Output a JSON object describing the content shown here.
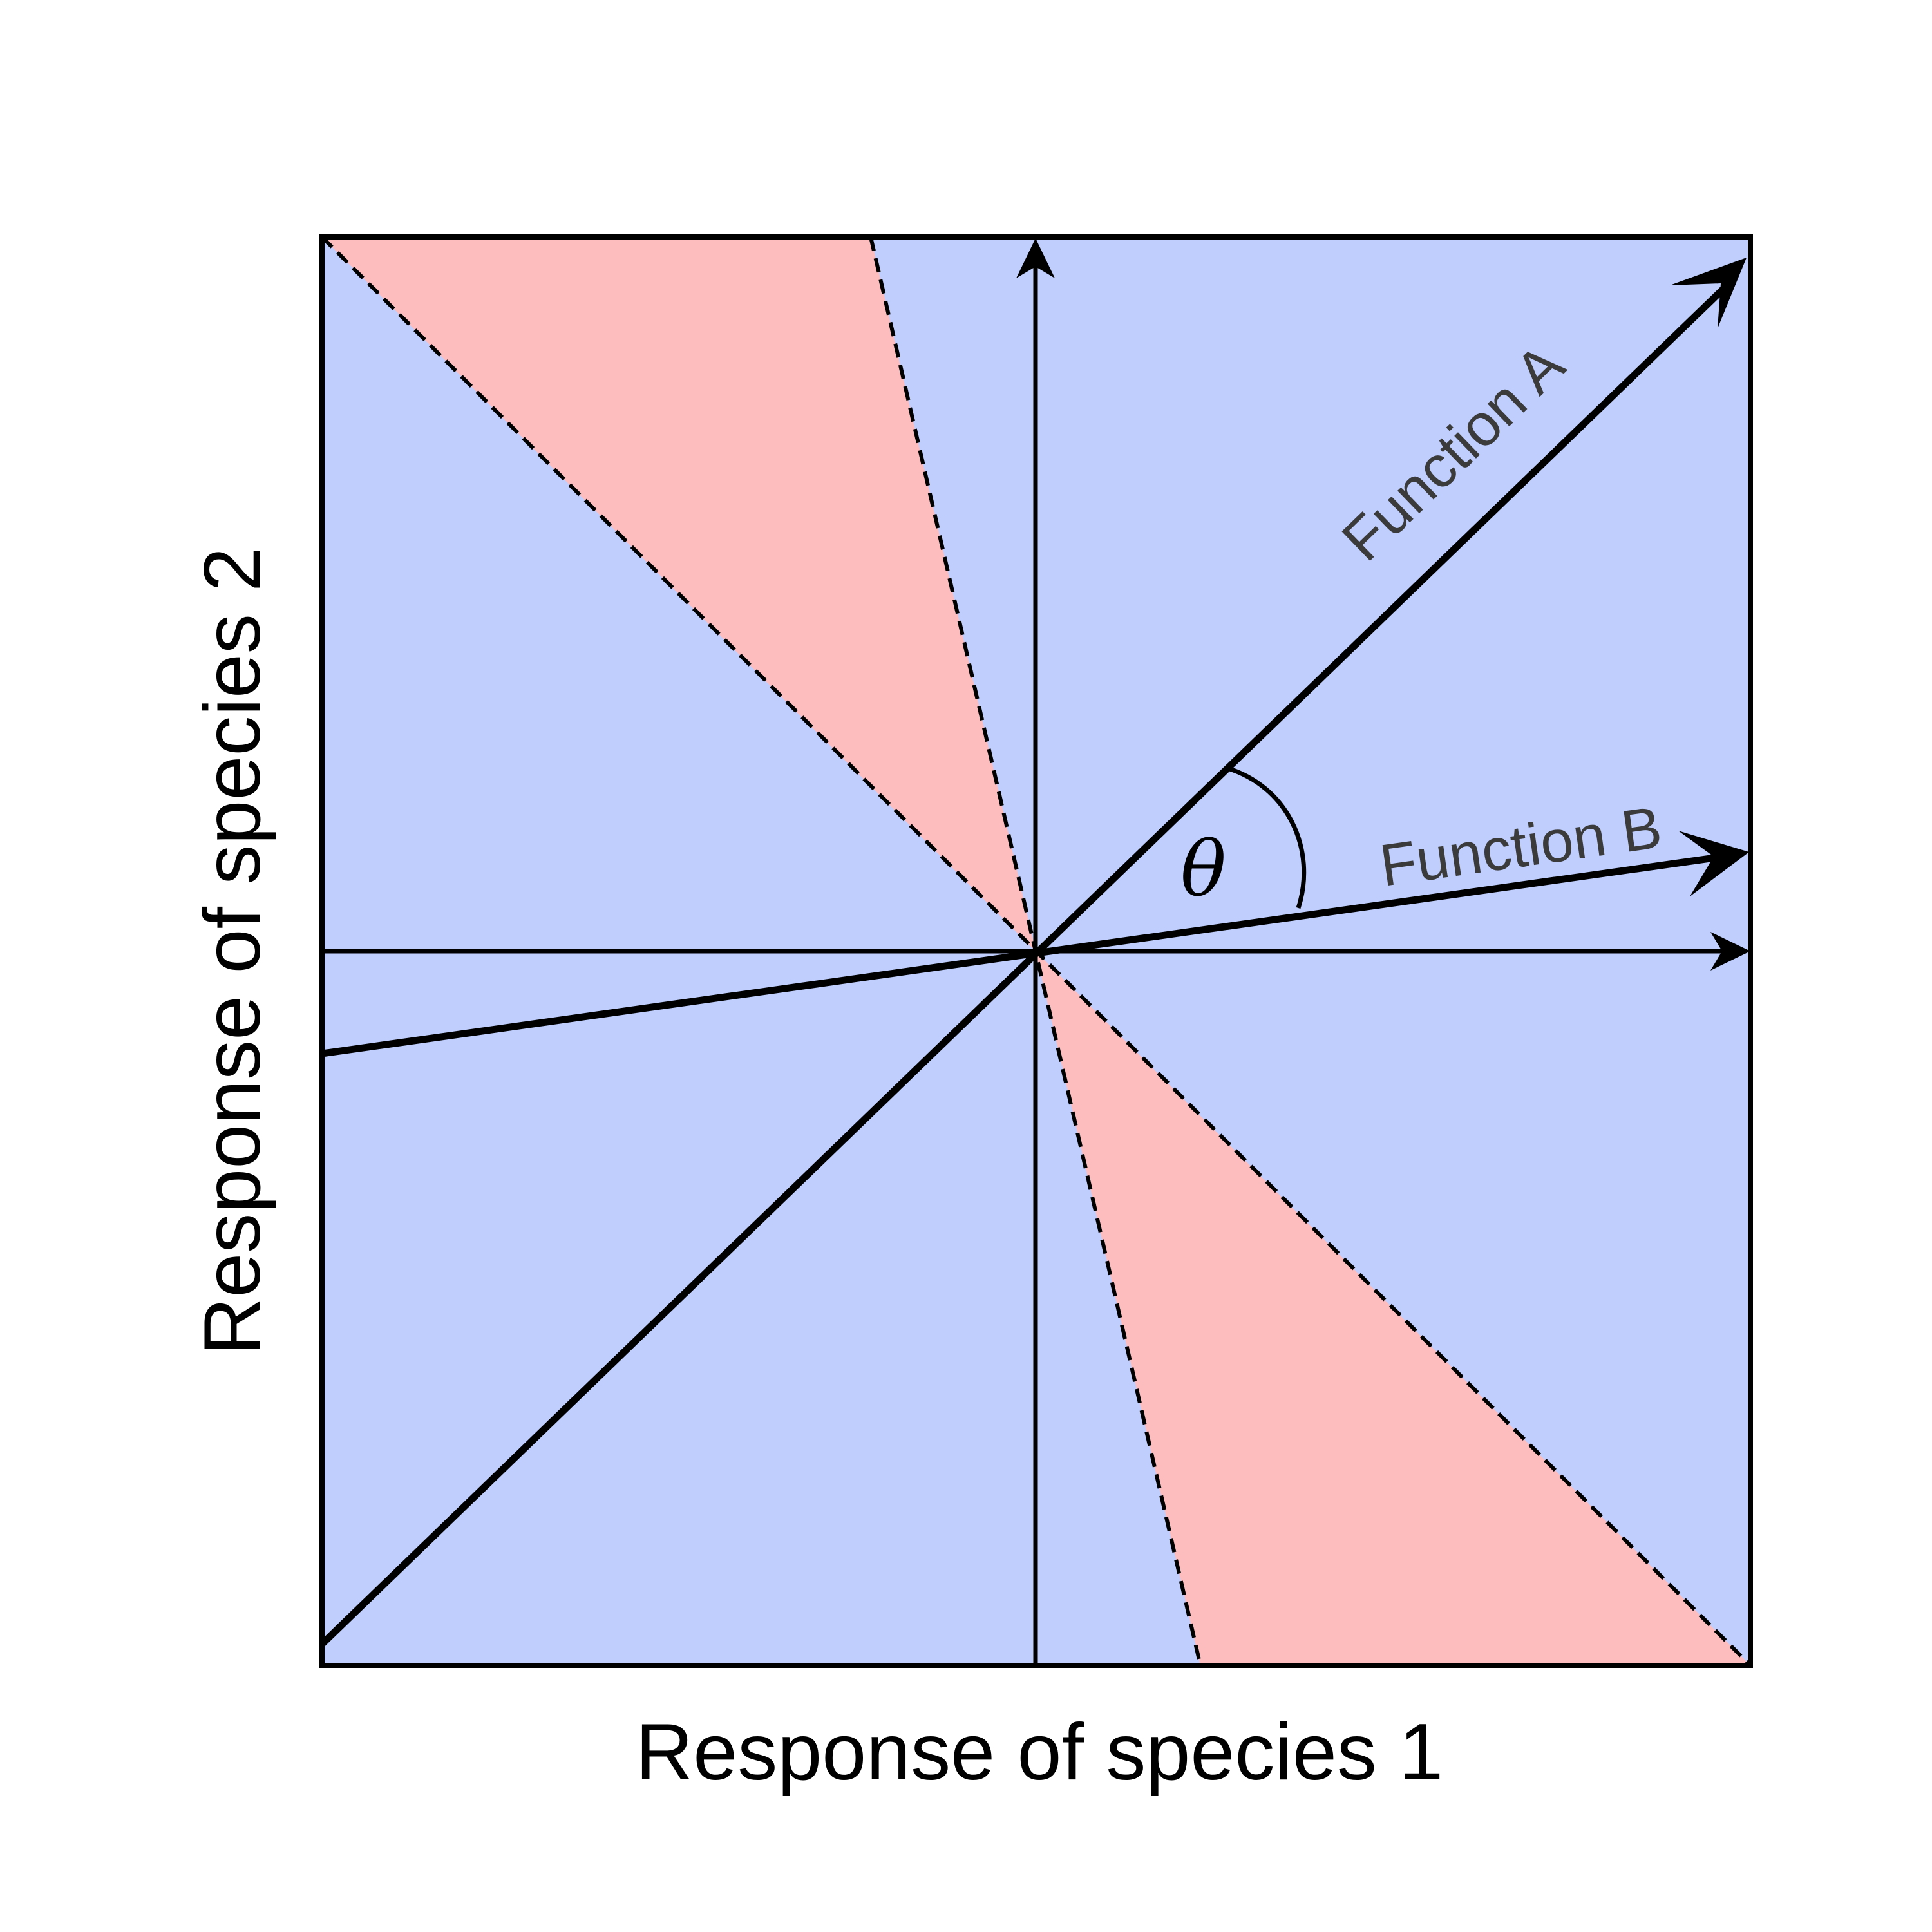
{
  "xlabel": "Response of species 1",
  "ylabel": "Response of species 2",
  "angle_symbol": "θ",
  "colors": {
    "background_region": "#bfcefd",
    "highlight_region": "#fdbdbf",
    "lines": "#000000",
    "vector_label": "#3b3b3b"
  },
  "vectors": [
    {
      "name": "Function A",
      "angle_deg": 44.0
    },
    {
      "name": "Function B",
      "angle_deg": 8.0
    }
  ],
  "boundary_lines_deg": [
    -45,
    -77
  ]
}
